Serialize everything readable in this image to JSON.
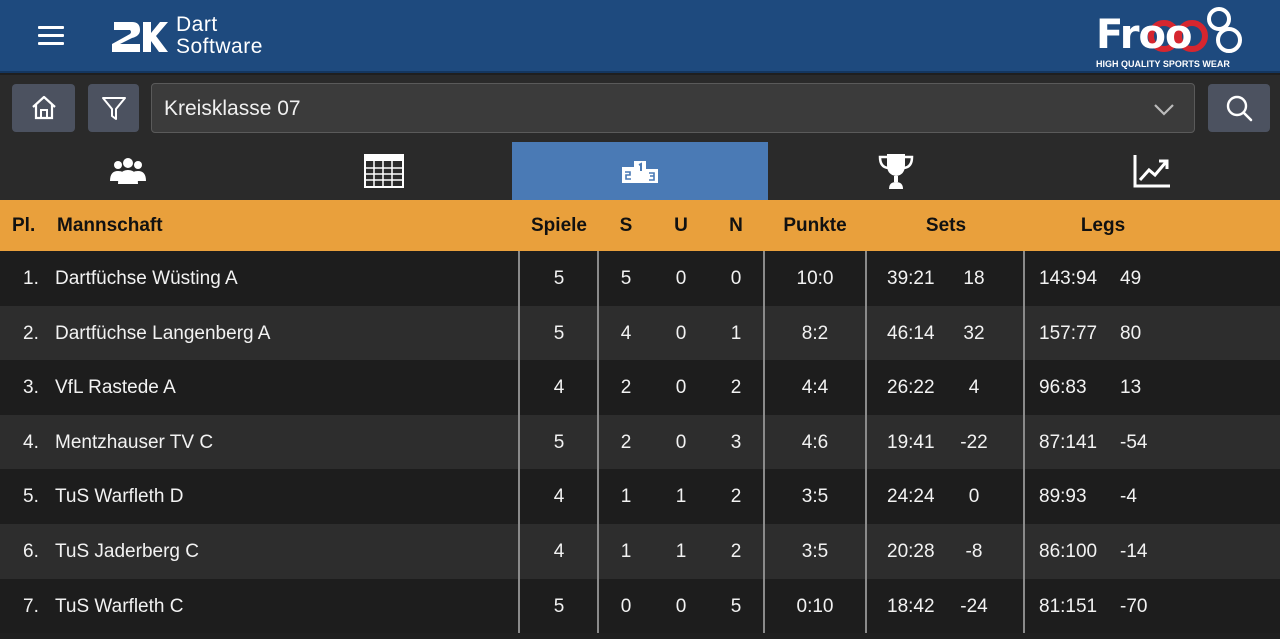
{
  "header": {
    "logo_line1": "Dart",
    "logo_line2": "Software",
    "sponsor_name": "Froo",
    "sponsor_tagline": "HIGH QUALITY SPORTS WEAR"
  },
  "toolbar": {
    "league_selected": "Kreisklasse 07"
  },
  "tabs": [
    {
      "icon": "teams-icon",
      "active": false
    },
    {
      "icon": "schedule-icon",
      "active": false
    },
    {
      "icon": "standings-icon",
      "active": true
    },
    {
      "icon": "trophy-icon",
      "active": false
    },
    {
      "icon": "statistics-icon",
      "active": false
    }
  ],
  "table": {
    "headers": {
      "place": "Pl.",
      "team": "Mannschaft",
      "games": "Spiele",
      "wins": "S",
      "draws": "U",
      "losses": "N",
      "points": "Punkte",
      "sets": "Sets",
      "legs": "Legs"
    },
    "rows": [
      {
        "place": "1.",
        "team": "Dartfüchse Wüsting A",
        "games": "5",
        "wins": "5",
        "draws": "0",
        "losses": "0",
        "points": "10:0",
        "sets": "39:21",
        "sets_diff": "18",
        "legs": "143:94",
        "legs_diff": "49"
      },
      {
        "place": "2.",
        "team": "Dartfüchse Langenberg A",
        "games": "5",
        "wins": "4",
        "draws": "0",
        "losses": "1",
        "points": "8:2",
        "sets": "46:14",
        "sets_diff": "32",
        "legs": "157:77",
        "legs_diff": "80"
      },
      {
        "place": "3.",
        "team": "VfL Rastede A",
        "games": "4",
        "wins": "2",
        "draws": "0",
        "losses": "2",
        "points": "4:4",
        "sets": "26:22",
        "sets_diff": "4",
        "legs": "96:83",
        "legs_diff": "13"
      },
      {
        "place": "4.",
        "team": "Mentzhauser TV C",
        "games": "5",
        "wins": "2",
        "draws": "0",
        "losses": "3",
        "points": "4:6",
        "sets": "19:41",
        "sets_diff": "-22",
        "legs": "87:141",
        "legs_diff": "-54"
      },
      {
        "place": "5.",
        "team": "TuS Warfleth D",
        "games": "4",
        "wins": "1",
        "draws": "1",
        "losses": "2",
        "points": "3:5",
        "sets": "24:24",
        "sets_diff": "0",
        "legs": "89:93",
        "legs_diff": "-4"
      },
      {
        "place": "6.",
        "team": "TuS Jaderberg C",
        "games": "4",
        "wins": "1",
        "draws": "1",
        "losses": "2",
        "points": "3:5",
        "sets": "20:28",
        "sets_diff": "-8",
        "legs": "86:100",
        "legs_diff": "-14"
      },
      {
        "place": "7.",
        "team": "TuS Warfleth C",
        "games": "5",
        "wins": "0",
        "draws": "0",
        "losses": "5",
        "points": "0:10",
        "sets": "18:42",
        "sets_diff": "-24",
        "legs": "81:151",
        "legs_diff": "-70"
      }
    ]
  },
  "colors": {
    "header_bg": "#1e4a7e",
    "table_header_bg": "#e9a03c",
    "active_tab_bg": "#4a7ab5",
    "button_bg": "#4c5260"
  }
}
